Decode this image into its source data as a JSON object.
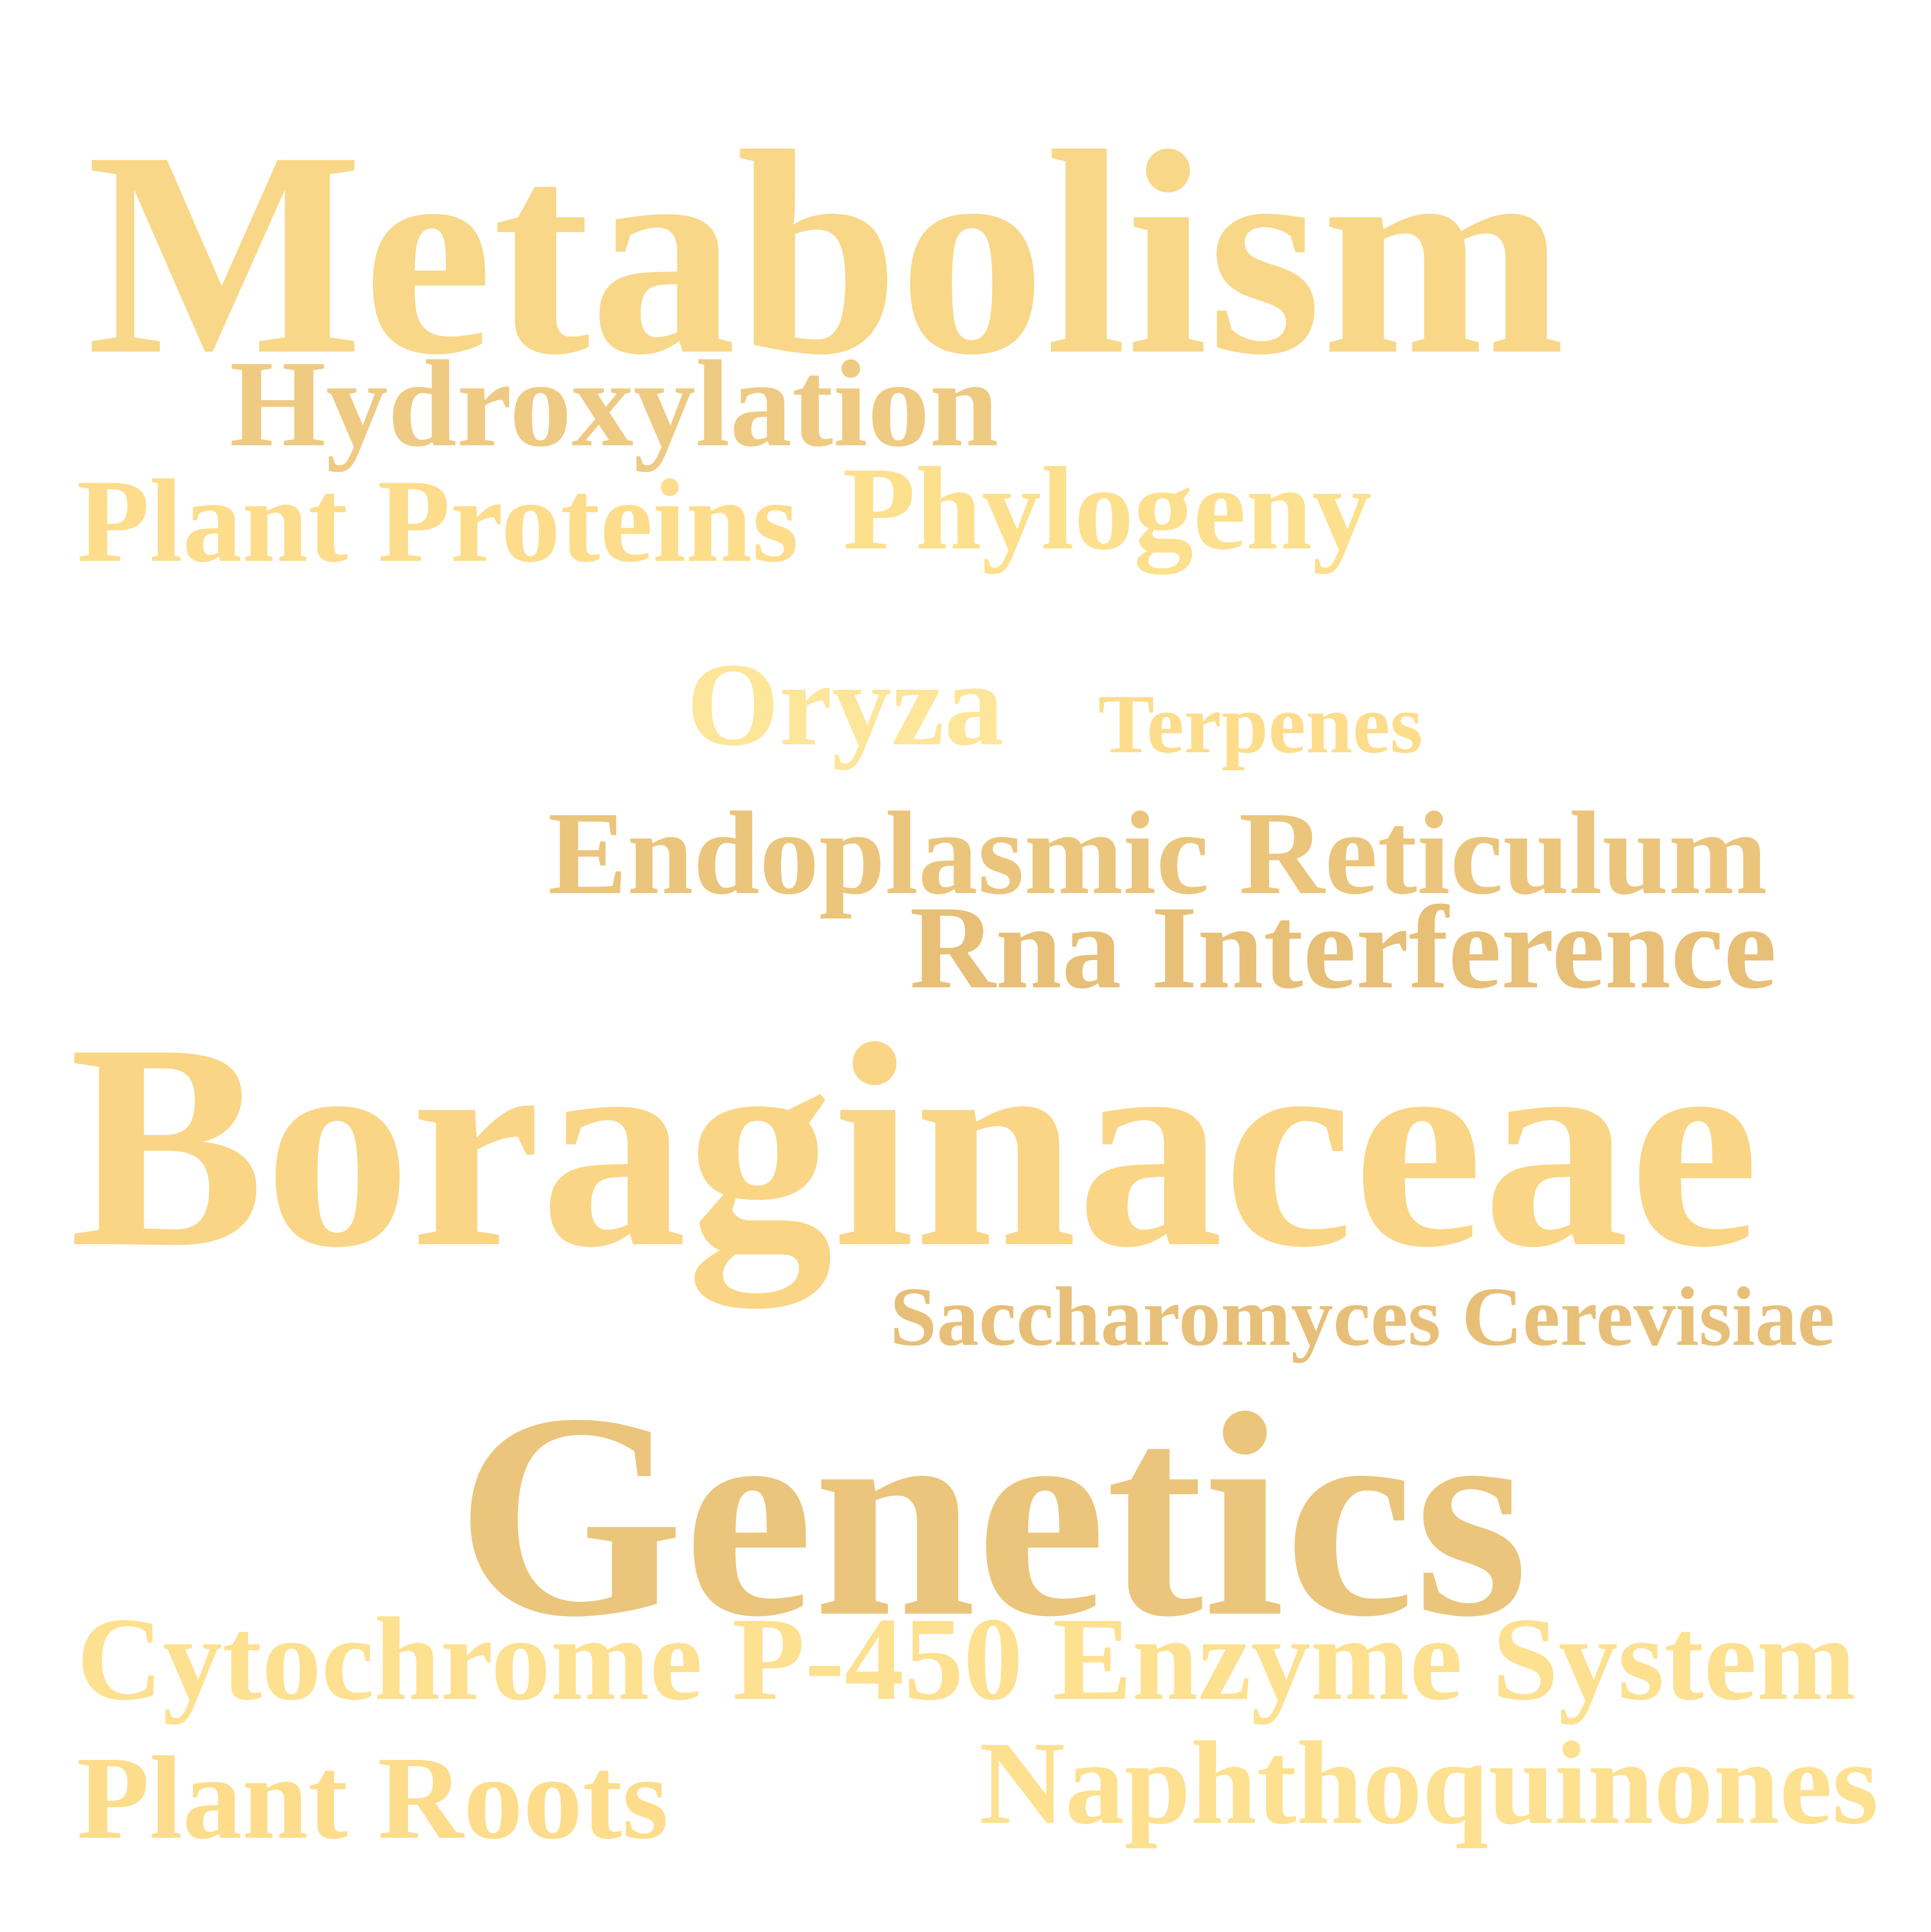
{
  "word_cloud": {
    "words": [
      {
        "text": "Metabolism",
        "color": "#f8d788"
      },
      {
        "text": "Hydroxylation",
        "color": "#efca82"
      },
      {
        "text": "Plant Proteins",
        "color": "#fddd8c"
      },
      {
        "text": "Phylogeny",
        "color": "#fde08e"
      },
      {
        "text": "Oryza",
        "color": "#fde59a"
      },
      {
        "text": "Terpenes",
        "color": "#fddd8c"
      },
      {
        "text": "Endoplasmic Reticulum",
        "color": "#ebc57c"
      },
      {
        "text": "Rna Interference",
        "color": "#e7bf76"
      },
      {
        "text": "Boraginaceae",
        "color": "#f9d585"
      },
      {
        "text": "Saccharomyces Cerevisiae",
        "color": "#e7bf78"
      },
      {
        "text": "Genetics",
        "color": "#ebc57c"
      },
      {
        "text": "Cytochrome P-450 Enzyme System",
        "color": "#fde090"
      },
      {
        "text": "Plant Roots",
        "color": "#fddd8c"
      },
      {
        "text": "Naphthoquinones",
        "color": "#fde090"
      }
    ]
  }
}
